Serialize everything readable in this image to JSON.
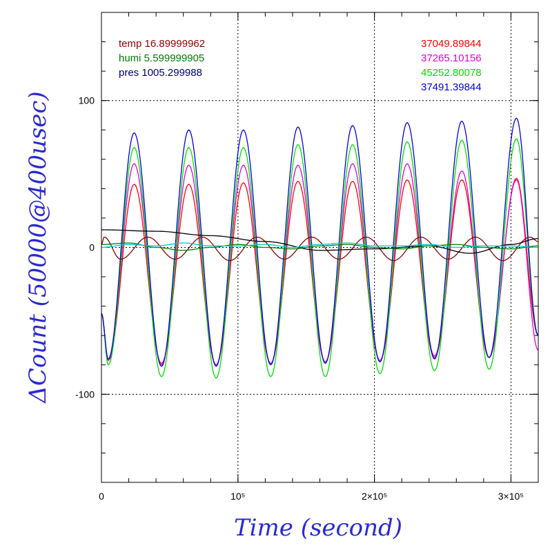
{
  "chart_data": {
    "type": "line",
    "title": "",
    "xlabel": "Time (second)",
    "ylabel": "ΔCount (50000@400usec)",
    "xlim": [
      0,
      320000
    ],
    "ylim": [
      -160,
      160
    ],
    "grid": true,
    "x_ticks": [
      {
        "value": 0,
        "label": "0"
      },
      {
        "value": 100000,
        "label": "10⁵"
      },
      {
        "value": 200000,
        "label": "2×10⁵"
      },
      {
        "value": 300000,
        "label": "3×10⁵"
      }
    ],
    "y_ticks": [
      {
        "value": 100,
        "label": "100"
      },
      {
        "value": 0,
        "label": "0"
      },
      {
        "value": -100,
        "label": "-100"
      }
    ],
    "env_legend": [
      {
        "label": "temp 16.89999962",
        "color": "#8b0000"
      },
      {
        "label": "humi 5.599999905",
        "color": "#007a00"
      },
      {
        "label": "pres 1005.299988",
        "color": "#00006e"
      }
    ],
    "series": [
      {
        "name": "37049.89844",
        "color": "#ff0000",
        "x": [
          0,
          5000,
          24000,
          44000,
          64000,
          84000,
          104000,
          124000,
          144000,
          164000,
          184000,
          204000,
          224000,
          244000,
          264000,
          284000,
          304000,
          320000
        ],
        "y": [
          -45,
          -77,
          43,
          -79,
          43,
          -80,
          44,
          -79,
          45,
          -78,
          45,
          -77,
          46,
          -75,
          46,
          -75,
          47,
          -60
        ]
      },
      {
        "name": "37265.10156",
        "color": "#e000e0",
        "x": [
          0,
          5000,
          24000,
          44000,
          64000,
          84000,
          104000,
          124000,
          144000,
          164000,
          184000,
          204000,
          224000,
          244000,
          264000,
          284000,
          304000,
          320000
        ],
        "y": [
          -45,
          -77,
          57,
          -80,
          56,
          -80,
          56,
          -79,
          56,
          -78,
          57,
          -77,
          57,
          -74,
          52,
          -75,
          46,
          -70
        ]
      },
      {
        "name": "45252.80078",
        "color": "#00dd00",
        "x": [
          0,
          5000,
          24000,
          44000,
          64000,
          84000,
          104000,
          124000,
          144000,
          164000,
          184000,
          204000,
          224000,
          244000,
          264000,
          284000,
          304000,
          320000
        ],
        "y": [
          -45,
          -80,
          68,
          -88,
          68,
          -89,
          68,
          -88,
          70,
          -88,
          70,
          -86,
          72,
          -84,
          73,
          -83,
          74,
          -60
        ]
      },
      {
        "name": "37491.39844",
        "color": "#0000dd",
        "x": [
          0,
          5000,
          24000,
          44000,
          64000,
          84000,
          104000,
          124000,
          144000,
          164000,
          184000,
          204000,
          224000,
          244000,
          264000,
          284000,
          304000,
          320000
        ],
        "y": [
          -45,
          -76,
          78,
          -81,
          80,
          -81,
          80,
          -80,
          82,
          -79,
          83,
          -78,
          85,
          -76,
          86,
          -75,
          88,
          -60
        ]
      },
      {
        "name": "",
        "color": "#8b0000",
        "x": [
          0,
          2000,
          14000,
          34000,
          54000,
          74000,
          94000,
          114000,
          134000,
          154000,
          174000,
          194000,
          214000,
          234000,
          254000,
          274000,
          294000,
          314000,
          320000
        ],
        "y": [
          2,
          7,
          -8,
          7,
          -8,
          7,
          -9,
          7,
          -8,
          7,
          -8,
          7,
          -9,
          7,
          -8,
          7,
          -9,
          7,
          4
        ]
      },
      {
        "name": "",
        "color": "#000000",
        "x": [
          0,
          40000,
          80000,
          120000,
          160000,
          200000,
          240000,
          270000,
          300000,
          320000
        ],
        "y": [
          12,
          11,
          8,
          4,
          -2,
          -1,
          1,
          -4,
          2,
          6
        ]
      },
      {
        "name": "",
        "color": "#008000",
        "x": [
          0,
          20000,
          40000,
          60000,
          80000,
          100000,
          120000,
          140000,
          160000,
          180000,
          200000,
          220000,
          240000,
          260000,
          280000,
          300000,
          320000
        ],
        "y": [
          2,
          3,
          0,
          -2,
          0,
          2,
          0,
          -1,
          1,
          2,
          0,
          -1,
          1,
          2,
          0,
          -1,
          1
        ]
      },
      {
        "name": "",
        "color": "#00c8c8",
        "x": [
          0,
          20000,
          40000,
          60000,
          80000,
          100000,
          120000,
          140000,
          160000,
          180000,
          200000,
          220000,
          240000,
          260000,
          280000,
          300000,
          320000
        ],
        "y": [
          0,
          2,
          1,
          3,
          1,
          1,
          2,
          0,
          2,
          3,
          1,
          1,
          2,
          0,
          1,
          1,
          0
        ]
      }
    ]
  }
}
